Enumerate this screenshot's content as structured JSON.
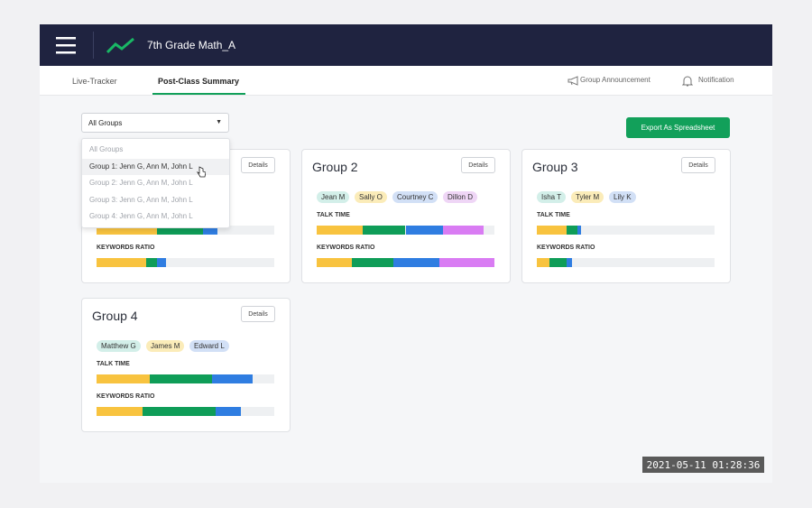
{
  "header": {
    "title": "7th Grade Math_A"
  },
  "tabs": [
    "Live-Tracker",
    "Post-Class Summary"
  ],
  "actions": [
    "Group Announcement",
    "Notification"
  ],
  "filter": {
    "selected": "All Groups",
    "options": [
      "All Groups",
      "Group 1: Jenn G, Ann M, John L",
      "Group 2: Jenn G, Ann M, John L",
      "Group 3: Jenn G, Ann M, John L",
      "Group 4: Jenn G, Ann M, John L"
    ]
  },
  "export_button": "Export As Spreadsheet",
  "segment_colors": [
    "#f8c33f",
    "#0f9d58",
    "#2f7de1",
    "#d97cf3"
  ],
  "groups": [
    {
      "details": "Details",
      "keywords_label": "KEYWORDS RATIO",
      "talk_time": [
        34,
        26,
        8
      ],
      "keywords_ratio": [
        28,
        6,
        5
      ]
    },
    {
      "title": "Group 2",
      "details": "Details",
      "talk_label": "TALK TIME",
      "keywords_label": "KEYWORDS RATIO",
      "members": [
        {
          "name": "Jean M",
          "color": "#d3efe9"
        },
        {
          "name": "Sally O",
          "color": "#fbecb9"
        },
        {
          "name": "Courtney C",
          "color": "#d2e0f6"
        },
        {
          "name": "Dillon D",
          "color": "#efd6f6"
        }
      ],
      "talk_time": [
        26,
        24,
        21,
        23
      ],
      "keywords_ratio": [
        20,
        23,
        26,
        31
      ]
    },
    {
      "title": "Group 3",
      "details": "Details",
      "talk_label": "TALK TIME",
      "keywords_label": "KEYWORDS RATIO",
      "members": [
        {
          "name": "Isha T",
          "color": "#d3efe9"
        },
        {
          "name": "Tyler M",
          "color": "#fbecb9"
        },
        {
          "name": "Lily K",
          "color": "#d2e0f6"
        }
      ],
      "talk_time": [
        17,
        6,
        2
      ],
      "keywords_ratio": [
        7,
        10,
        3
      ]
    },
    {
      "title": "Group 4",
      "details": "Details",
      "talk_label": "TALK TIME",
      "keywords_label": "KEYWORDS RATIO",
      "members": [
        {
          "name": "Matthew G",
          "color": "#d3efe9"
        },
        {
          "name": "James M",
          "color": "#fbecb9"
        },
        {
          "name": "Edward L",
          "color": "#d2e0f6"
        }
      ],
      "talk_time": [
        30,
        35,
        23
      ],
      "keywords_ratio": [
        26,
        41,
        14
      ]
    }
  ],
  "timestamp": "2021-05-11 01:28:36"
}
